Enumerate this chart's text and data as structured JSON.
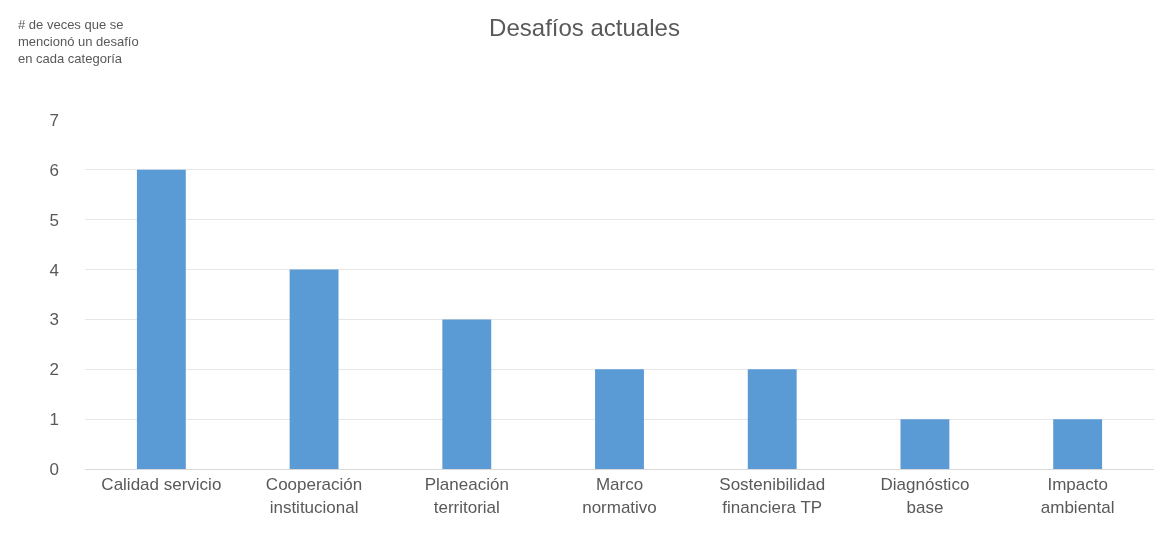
{
  "chart_data": {
    "type": "bar",
    "title": "Desafíos actuales",
    "ylabel": "# de veces que se\nmencionó un desafío\nen cada categoría",
    "categories": [
      "Calidad servicio",
      "Cooperación\ninstitucional",
      "Planeación\nterritorial",
      "Marco\nnormativo",
      "Sostenibilidad\nfinanciera TP",
      "Diagnóstico\nbase",
      "Impacto\nambiental"
    ],
    "values": [
      6,
      4,
      3,
      2,
      2,
      1,
      1
    ],
    "color": "#5b9bd5",
    "ylim": [
      0,
      7
    ],
    "yticks": [
      0,
      1,
      2,
      3,
      4,
      5,
      6,
      7
    ],
    "grid": "y"
  }
}
